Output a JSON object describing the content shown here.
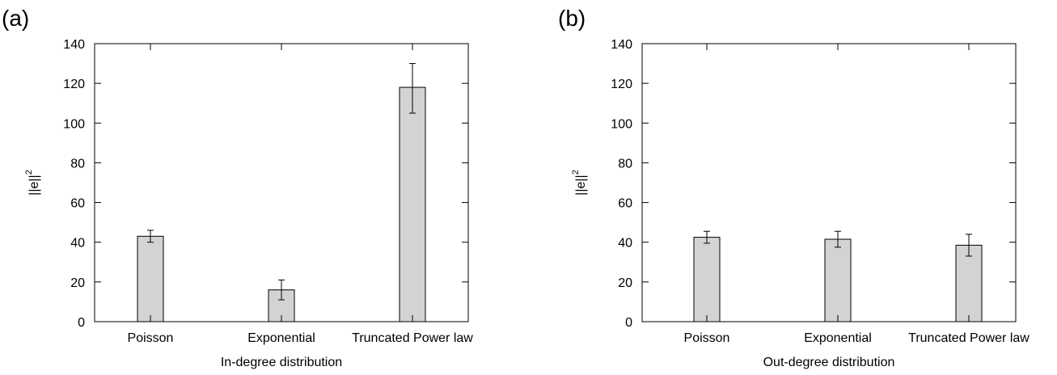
{
  "colors": {
    "bar_fill": "#d3d3d3",
    "bar_stroke": "#000000",
    "axis": "#000000"
  },
  "chart_data": [
    {
      "type": "bar",
      "panel_label": "(a)",
      "categories": [
        "Poisson",
        "Exponential",
        "Truncated Power law"
      ],
      "values": [
        43,
        16,
        118
      ],
      "error_low": [
        40,
        11,
        105
      ],
      "error_high": [
        46,
        21,
        130
      ],
      "xlabel": "In-degree distribution",
      "ylabel": "||e||",
      "ylabel_sup": "2",
      "ylim": [
        0,
        140
      ],
      "yticks": [
        0,
        20,
        40,
        60,
        80,
        100,
        120,
        140
      ],
      "grid": false
    },
    {
      "type": "bar",
      "panel_label": "(b)",
      "categories": [
        "Poisson",
        "Exponential",
        "Truncated Power law"
      ],
      "values": [
        42.5,
        41.5,
        38.5
      ],
      "error_low": [
        39.5,
        37.5,
        33
      ],
      "error_high": [
        45.5,
        45.5,
        44
      ],
      "xlabel": "Out-degree distribution",
      "ylabel": "||e||",
      "ylabel_sup": "2",
      "ylim": [
        0,
        140
      ],
      "yticks": [
        0,
        20,
        40,
        60,
        80,
        100,
        120,
        140
      ],
      "grid": false
    }
  ]
}
